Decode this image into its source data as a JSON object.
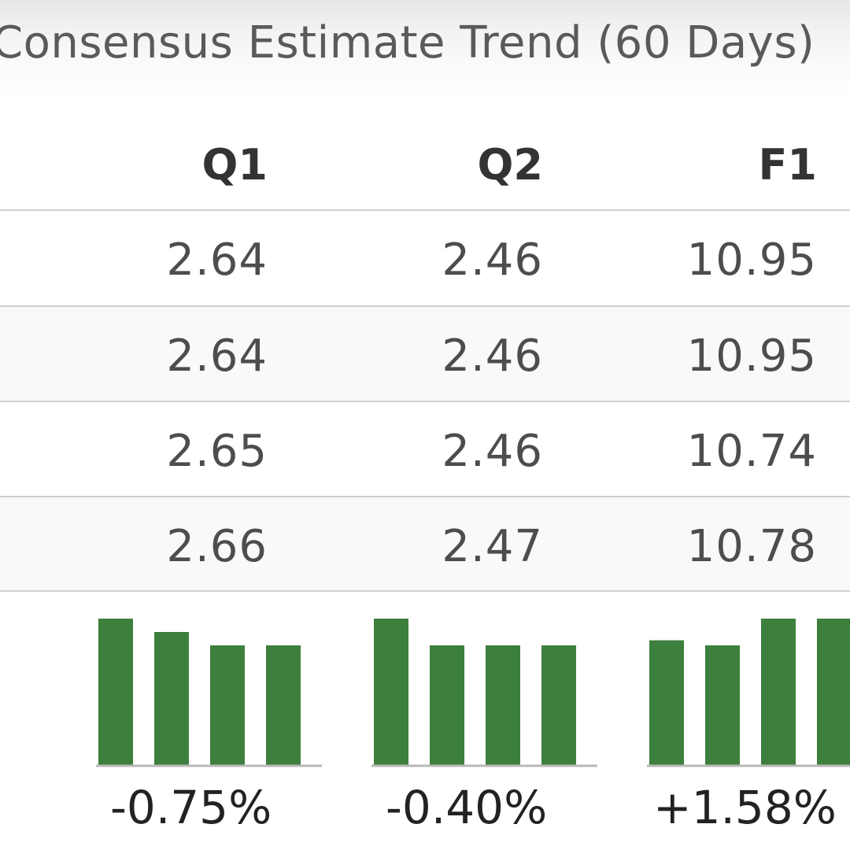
{
  "title": "Consensus Estimate Trend (60 Days)",
  "columns": [
    "Q1",
    "Q2",
    "F1"
  ],
  "rows": [
    [
      "2.64",
      "2.46",
      "10.95"
    ],
    [
      "2.64",
      "2.46",
      "10.95"
    ],
    [
      "2.65",
      "2.46",
      "10.74"
    ],
    [
      "2.66",
      "2.47",
      "10.78"
    ]
  ],
  "trend": [
    "-0.75%",
    "-0.40%",
    "+1.58%"
  ],
  "colors": {
    "bar": "#3d7f3d",
    "axis": "#b8b8b8"
  },
  "chart_data": {
    "type": "bar",
    "title": "Consensus Estimate Trend (60 Days)",
    "groups": [
      {
        "name": "Q1",
        "values": [
          2.66,
          2.65,
          2.64,
          2.64
        ],
        "change": "-0.75%"
      },
      {
        "name": "Q2",
        "values": [
          2.47,
          2.46,
          2.46,
          2.46
        ],
        "change": "-0.40%"
      },
      {
        "name": "F1",
        "values": [
          10.78,
          10.74,
          10.95,
          10.95
        ],
        "change": "+1.58%"
      }
    ]
  }
}
